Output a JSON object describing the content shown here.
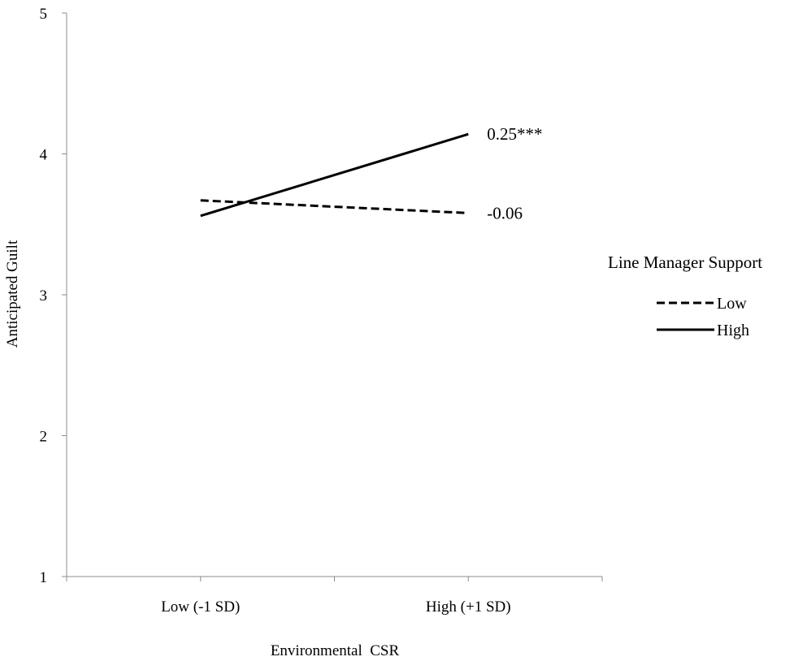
{
  "chart_data": {
    "type": "line",
    "title": "",
    "xlabel": "Environmental  CSR",
    "ylabel": "Anticipated Guilt",
    "categories": [
      "Low (-1 SD)",
      "High (+1 SD)"
    ],
    "ylim": [
      1,
      5
    ],
    "yticks": [
      "1",
      "2",
      "3",
      "4",
      "5"
    ],
    "grid": false,
    "legend_title": "Line Manager Support",
    "legend_position": "right",
    "series": [
      {
        "name": "Low",
        "values": [
          3.67,
          3.58
        ],
        "line_style": "dashed",
        "annotation": "-0.06"
      },
      {
        "name": "High",
        "values": [
          3.56,
          4.14
        ],
        "line_style": "solid",
        "annotation": "0.25***"
      }
    ]
  },
  "colors": {
    "line": "#000000",
    "axis": "#8c8c8c",
    "background": "#ffffff"
  }
}
